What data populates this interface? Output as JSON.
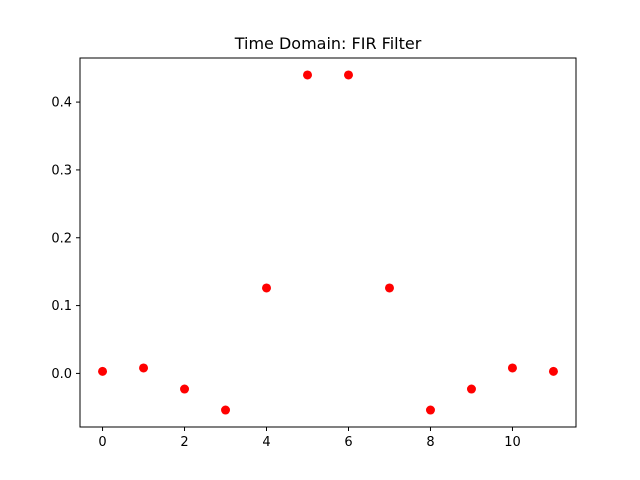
{
  "chart_data": {
    "type": "scatter",
    "title": "Time Domain: FIR Filter",
    "xlabel": "",
    "ylabel": "",
    "x": [
      0,
      1,
      2,
      3,
      4,
      5,
      6,
      7,
      8,
      9,
      10,
      11
    ],
    "y": [
      0.003,
      0.008,
      -0.023,
      -0.054,
      0.126,
      0.44,
      0.44,
      0.126,
      -0.054,
      -0.023,
      0.008,
      0.003
    ],
    "xlim": [
      -0.55,
      11.55
    ],
    "ylim": [
      -0.079,
      0.465
    ],
    "xticks": [
      0,
      2,
      4,
      6,
      8,
      10
    ],
    "yticks": [
      0.0,
      0.1,
      0.2,
      0.3,
      0.4
    ],
    "xtick_labels": [
      "0",
      "2",
      "4",
      "6",
      "8",
      "10"
    ],
    "ytick_labels": [
      "0.0",
      "0.1",
      "0.2",
      "0.3",
      "0.4"
    ],
    "marker_color": "#ff0000",
    "grid": false,
    "legend": "none"
  }
}
